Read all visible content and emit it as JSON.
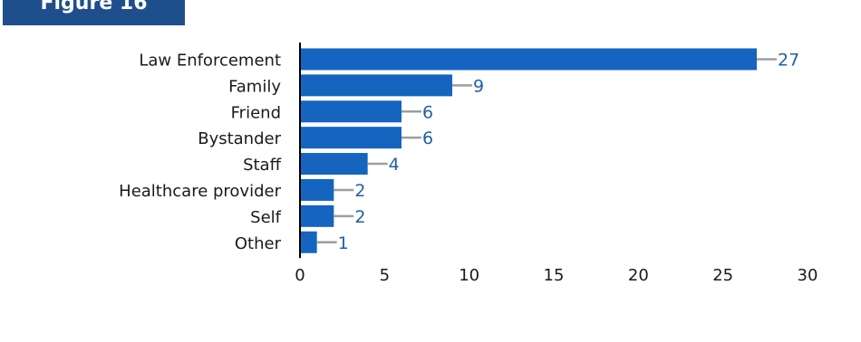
{
  "figure_label": "Figure 16",
  "colors": {
    "bar": "#1565c0",
    "label_text": "#1f5fa8",
    "leader_line": "#9e9e9e",
    "axis": "#000000",
    "tab_background": "#1f4e8c"
  },
  "chart_data": {
    "type": "bar",
    "orientation": "horizontal",
    "categories": [
      "Law Enforcement",
      "Family",
      "Friend",
      "Bystander",
      "Staff",
      "Healthcare provider",
      "Self",
      "Other"
    ],
    "values": [
      27,
      9,
      6,
      6,
      4,
      2,
      2,
      1
    ],
    "xlim": [
      0,
      30
    ],
    "xticks": [
      0,
      5,
      10,
      15,
      20,
      25,
      30
    ],
    "grid": false,
    "legend": "none",
    "data_labels": true
  }
}
